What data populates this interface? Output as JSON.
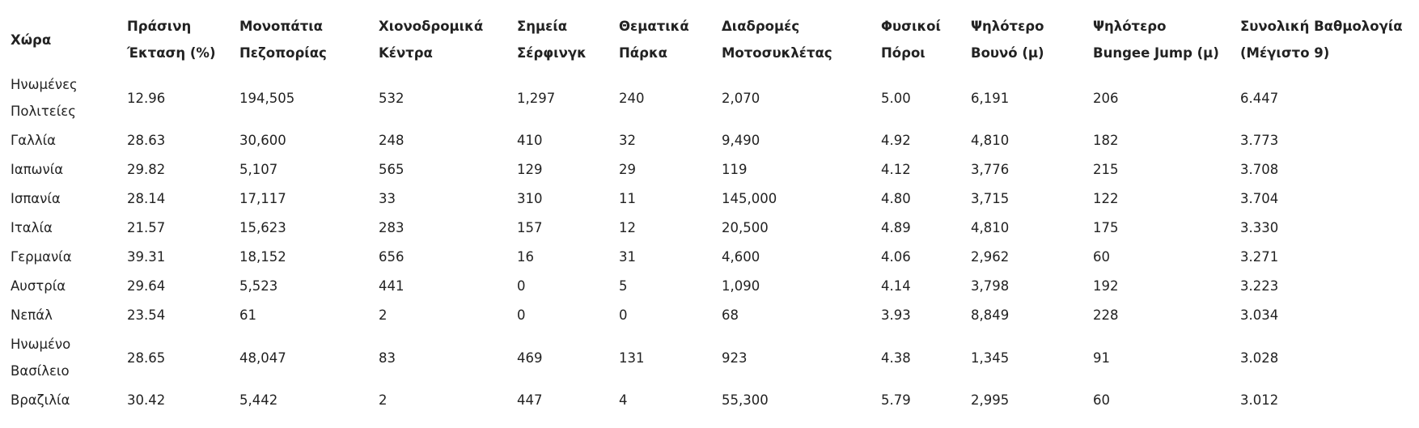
{
  "table": {
    "headers": [
      "Χώρα",
      "Πράσινη Έκταση (%)",
      "Μονοπάτια Πεζοπορίας",
      "Χιονοδρομικά Κέντρα",
      "Σημεία Σέρφινγκ",
      "Θεματικά Πάρκα",
      "Διαδρομές Μοτοσυκλέτας",
      "Φυσικοί Πόροι",
      "Ψηλότερο Βουνό (μ)",
      "Ψηλότερο Bungee Jump (μ)",
      "Συνολική Βαθμολογία (Μέγιστο 9)"
    ],
    "rows": [
      [
        "Ηνωμένες Πολιτείες",
        "12.96",
        "194,505",
        "532",
        "1,297",
        "240",
        "2,070",
        "5.00",
        "6,191",
        "206",
        "6.447"
      ],
      [
        "Γαλλία",
        "28.63",
        "30,600",
        "248",
        "410",
        "32",
        "9,490",
        "4.92",
        "4,810",
        "182",
        "3.773"
      ],
      [
        "Ιαπωνία",
        "29.82",
        "5,107",
        "565",
        "129",
        "29",
        "119",
        "4.12",
        "3,776",
        "215",
        "3.708"
      ],
      [
        "Ισπανία",
        "28.14",
        "17,117",
        "33",
        "310",
        "11",
        "145,000",
        "4.80",
        "3,715",
        "122",
        "3.704"
      ],
      [
        "Ιταλία",
        "21.57",
        "15,623",
        "283",
        "157",
        "12",
        "20,500",
        "4.89",
        "4,810",
        "175",
        "3.330"
      ],
      [
        "Γερμανία",
        "39.31",
        "18,152",
        "656",
        "16",
        "31",
        "4,600",
        "4.06",
        "2,962",
        "60",
        "3.271"
      ],
      [
        "Αυστρία",
        "29.64",
        "5,523",
        "441",
        "0",
        "5",
        "1,090",
        "4.14",
        "3,798",
        "192",
        "3.223"
      ],
      [
        "Νεπάλ",
        "23.54",
        "61",
        "2",
        "0",
        "0",
        "68",
        "3.93",
        "8,849",
        "228",
        "3.034"
      ],
      [
        "Ηνωμένο Βασίλειο",
        "28.65",
        "48,047",
        "83",
        "469",
        "131",
        "923",
        "4.38",
        "1,345",
        "91",
        "3.028"
      ],
      [
        "Βραζιλία",
        "30.42",
        "5,442",
        "2",
        "447",
        "4",
        "55,300",
        "5.79",
        "2,995",
        "60",
        "3.012"
      ]
    ]
  }
}
